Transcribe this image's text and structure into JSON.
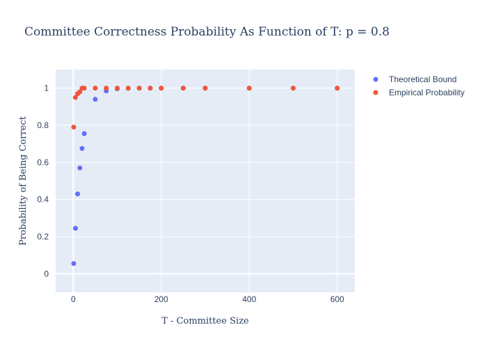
{
  "chart_data": {
    "type": "scatter",
    "title": "Committee Correctness Probability As Function of T: p = 0.8",
    "xlabel": "T - Committee Size",
    "ylabel": "Probability of Being Correct",
    "xlim": [
      -40,
      640
    ],
    "ylim": [
      -0.1,
      1.1
    ],
    "x_ticks": [
      0,
      200,
      400,
      600
    ],
    "y_ticks": [
      0,
      0.2,
      0.4,
      0.6,
      0.8,
      1
    ],
    "grid": true,
    "legend_position": "top-right",
    "series": [
      {
        "name": "Theoretical Bound",
        "color": "#636efa",
        "points": [
          {
            "x": 1,
            "y": 0.055
          },
          {
            "x": 5,
            "y": 0.245
          },
          {
            "x": 10,
            "y": 0.43
          },
          {
            "x": 15,
            "y": 0.57
          },
          {
            "x": 20,
            "y": 0.675
          },
          {
            "x": 25,
            "y": 0.755
          },
          {
            "x": 50,
            "y": 0.94
          },
          {
            "x": 75,
            "y": 0.985
          },
          {
            "x": 100,
            "y": 0.997
          },
          {
            "x": 125,
            "y": 0.999
          },
          {
            "x": 150,
            "y": 1.0
          },
          {
            "x": 175,
            "y": 1.0
          },
          {
            "x": 200,
            "y": 1.0
          },
          {
            "x": 250,
            "y": 1.0
          },
          {
            "x": 300,
            "y": 1.0
          },
          {
            "x": 400,
            "y": 1.0
          },
          {
            "x": 500,
            "y": 1.0
          },
          {
            "x": 600,
            "y": 1.0
          }
        ]
      },
      {
        "name": "Empirical Probability",
        "color": "#ef553b",
        "points": [
          {
            "x": 1,
            "y": 0.79
          },
          {
            "x": 5,
            "y": 0.95
          },
          {
            "x": 10,
            "y": 0.97
          },
          {
            "x": 15,
            "y": 0.98
          },
          {
            "x": 20,
            "y": 1.0
          },
          {
            "x": 25,
            "y": 1.0
          },
          {
            "x": 50,
            "y": 1.0
          },
          {
            "x": 75,
            "y": 1.0
          },
          {
            "x": 100,
            "y": 1.0
          },
          {
            "x": 125,
            "y": 1.0
          },
          {
            "x": 150,
            "y": 1.0
          },
          {
            "x": 175,
            "y": 1.0
          },
          {
            "x": 200,
            "y": 1.0
          },
          {
            "x": 250,
            "y": 1.0
          },
          {
            "x": 300,
            "y": 1.0
          },
          {
            "x": 400,
            "y": 1.0
          },
          {
            "x": 500,
            "y": 1.0
          },
          {
            "x": 600,
            "y": 1.0
          }
        ]
      }
    ]
  }
}
